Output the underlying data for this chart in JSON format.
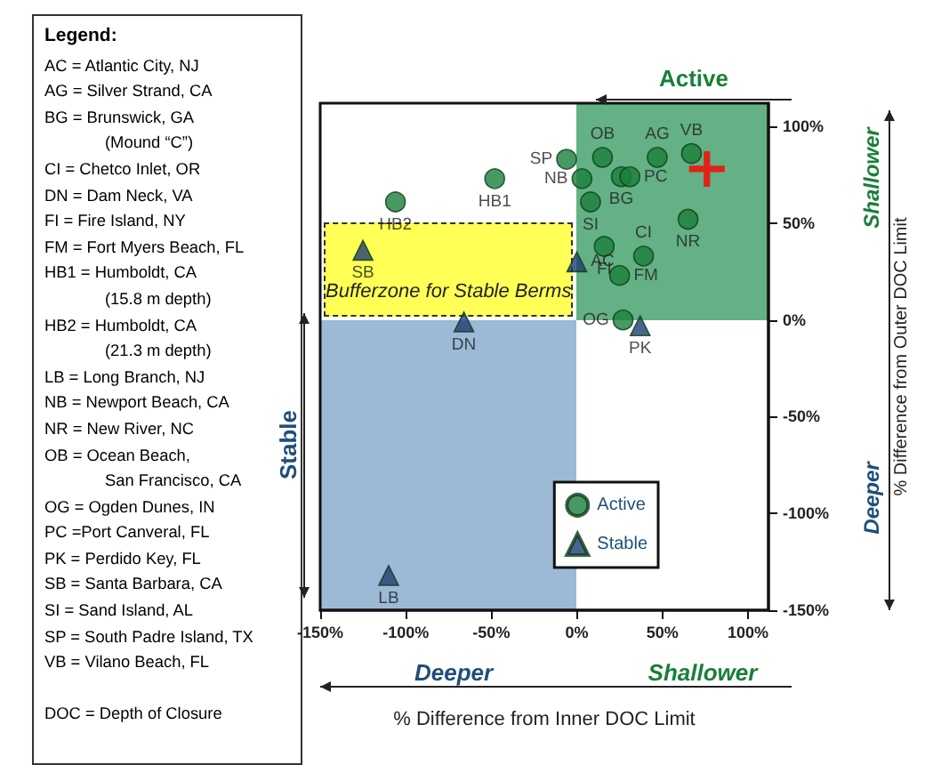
{
  "chart_data": [
    {
      "type": "other",
      "title": "Legend:",
      "annotations": [
        "AC = Atlantic City, NJ",
        "AG = Silver Strand, CA",
        "BG = Brunswick, GA\n(Mound “C”)",
        "CI = Chetco Inlet, OR",
        "DN = Dam Neck, VA",
        "FI = Fire Island, NY",
        "FM = Fort Myers Beach, FL",
        "HB1 = Humboldt, CA\n(15.8 m depth)",
        "HB2 = Humboldt, CA\n(21.3 m depth)",
        "LB = Long Branch, NJ",
        "NB = Newport Beach, CA",
        "NR = New River, NC",
        "OB = Ocean Beach,\nSan Francisco, CA",
        "OG = Ogden Dunes, IN",
        "PC =Port Canveral, FL",
        "PK = Perdido Key, FL",
        "SB = Santa Barbara, CA",
        "SI = Sand Island, AL",
        "SP = South Padre Island, TX",
        "VB = Vilano Beach, FL",
        "DOC = Depth of Closure"
      ]
    },
    {
      "type": "scatter",
      "xlabel": "% Difference from Inner DOC Limit",
      "ylabel": "% Difference from Outer DOC Limit",
      "xlim": [
        -150,
        112
      ],
      "ylim": [
        -150,
        112
      ],
      "xticks": [
        {
          "value": -150,
          "label": "-150%"
        },
        {
          "value": -100,
          "label": "-100%"
        },
        {
          "value": -50,
          "label": "-50%"
        },
        {
          "value": 0,
          "label": "0%"
        },
        {
          "value": 50,
          "label": "50%"
        },
        {
          "value": 100,
          "label": "100%"
        }
      ],
      "yticks": [
        {
          "value": -150,
          "label": "-150%"
        },
        {
          "value": -100,
          "label": "-100%"
        },
        {
          "value": -50,
          "label": "-50%"
        },
        {
          "value": 0,
          "label": "0%"
        },
        {
          "value": 50,
          "label": "50%"
        },
        {
          "value": 100,
          "label": "100%"
        }
      ],
      "grid": false,
      "legend": "bottom right",
      "annotations": [
        "Active",
        "Stable",
        "Deeper",
        "Shallower",
        "Shallower",
        "Deeper",
        "Bufferzone for Stable Berms"
      ],
      "series": [
        {
          "name": "Active",
          "color": "#1a7f3a",
          "marker": "circle",
          "x": [
            -6,
            15,
            47,
            67,
            3,
            26,
            31,
            -48,
            -106,
            8,
            65,
            39,
            16,
            25,
            27
          ],
          "values": [
            83,
            84,
            84,
            86,
            73,
            74,
            74,
            73,
            61,
            61,
            52,
            33,
            38,
            23,
            0
          ],
          "value_labels": [
            "SP",
            "OB",
            "AG",
            "VB",
            "NB",
            "BG",
            "PC",
            "HB1",
            "HB2",
            "SI",
            "NR",
            "CI",
            "FI",
            "FM",
            "OG"
          ]
        },
        {
          "name": "Stable",
          "color": "#1f3f73",
          "marker": "triangle",
          "x": [
            -125,
            0,
            -66,
            37,
            -110
          ],
          "values": [
            36,
            30,
            -1,
            -3,
            -132
          ],
          "value_labels": [
            "SB",
            "AC",
            "DN",
            "PK",
            "LB"
          ]
        },
        {
          "color": "#ff0000",
          "marker": "cross",
          "x": [
            76
          ],
          "values": [
            78
          ]
        }
      ]
    }
  ]
}
